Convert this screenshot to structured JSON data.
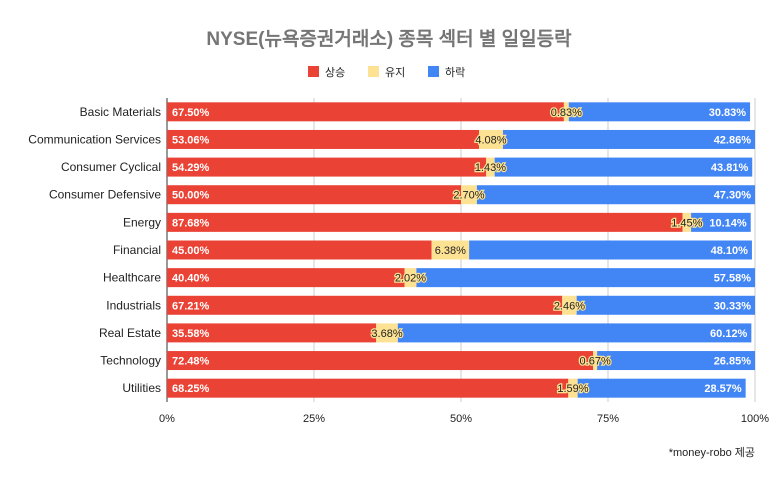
{
  "chart_data": {
    "type": "bar",
    "orientation": "horizontal",
    "stacked": "percent",
    "title": "NYSE(뉴욕증권거래소) 종목 섹터 별 일일등락",
    "categories": [
      "Basic Materials",
      "Communication Services",
      "Consumer Cyclical",
      "Consumer Defensive",
      "Energy",
      "Financial",
      "Healthcare",
      "Industrials",
      "Real Estate",
      "Technology",
      "Utilities"
    ],
    "series": [
      {
        "name": "상승",
        "color": "#ea4335",
        "values": [
          67.5,
          53.06,
          54.29,
          50.0,
          87.68,
          45.0,
          40.4,
          67.21,
          35.58,
          72.48,
          68.25
        ]
      },
      {
        "name": "유지",
        "color": "#fde293",
        "values": [
          0.83,
          4.08,
          1.43,
          2.7,
          1.45,
          6.38,
          2.02,
          2.46,
          3.68,
          0.67,
          1.59
        ]
      },
      {
        "name": "하락",
        "color": "#4285f4",
        "values": [
          30.83,
          42.86,
          43.81,
          47.3,
          10.14,
          48.1,
          57.58,
          30.33,
          60.12,
          26.85,
          28.57
        ]
      }
    ],
    "xticks": [
      "0%",
      "25%",
      "50%",
      "75%",
      "100%"
    ],
    "xlim": [
      0,
      100
    ],
    "legend": "top-center",
    "grid": true,
    "note": "*money-robo 제공"
  }
}
